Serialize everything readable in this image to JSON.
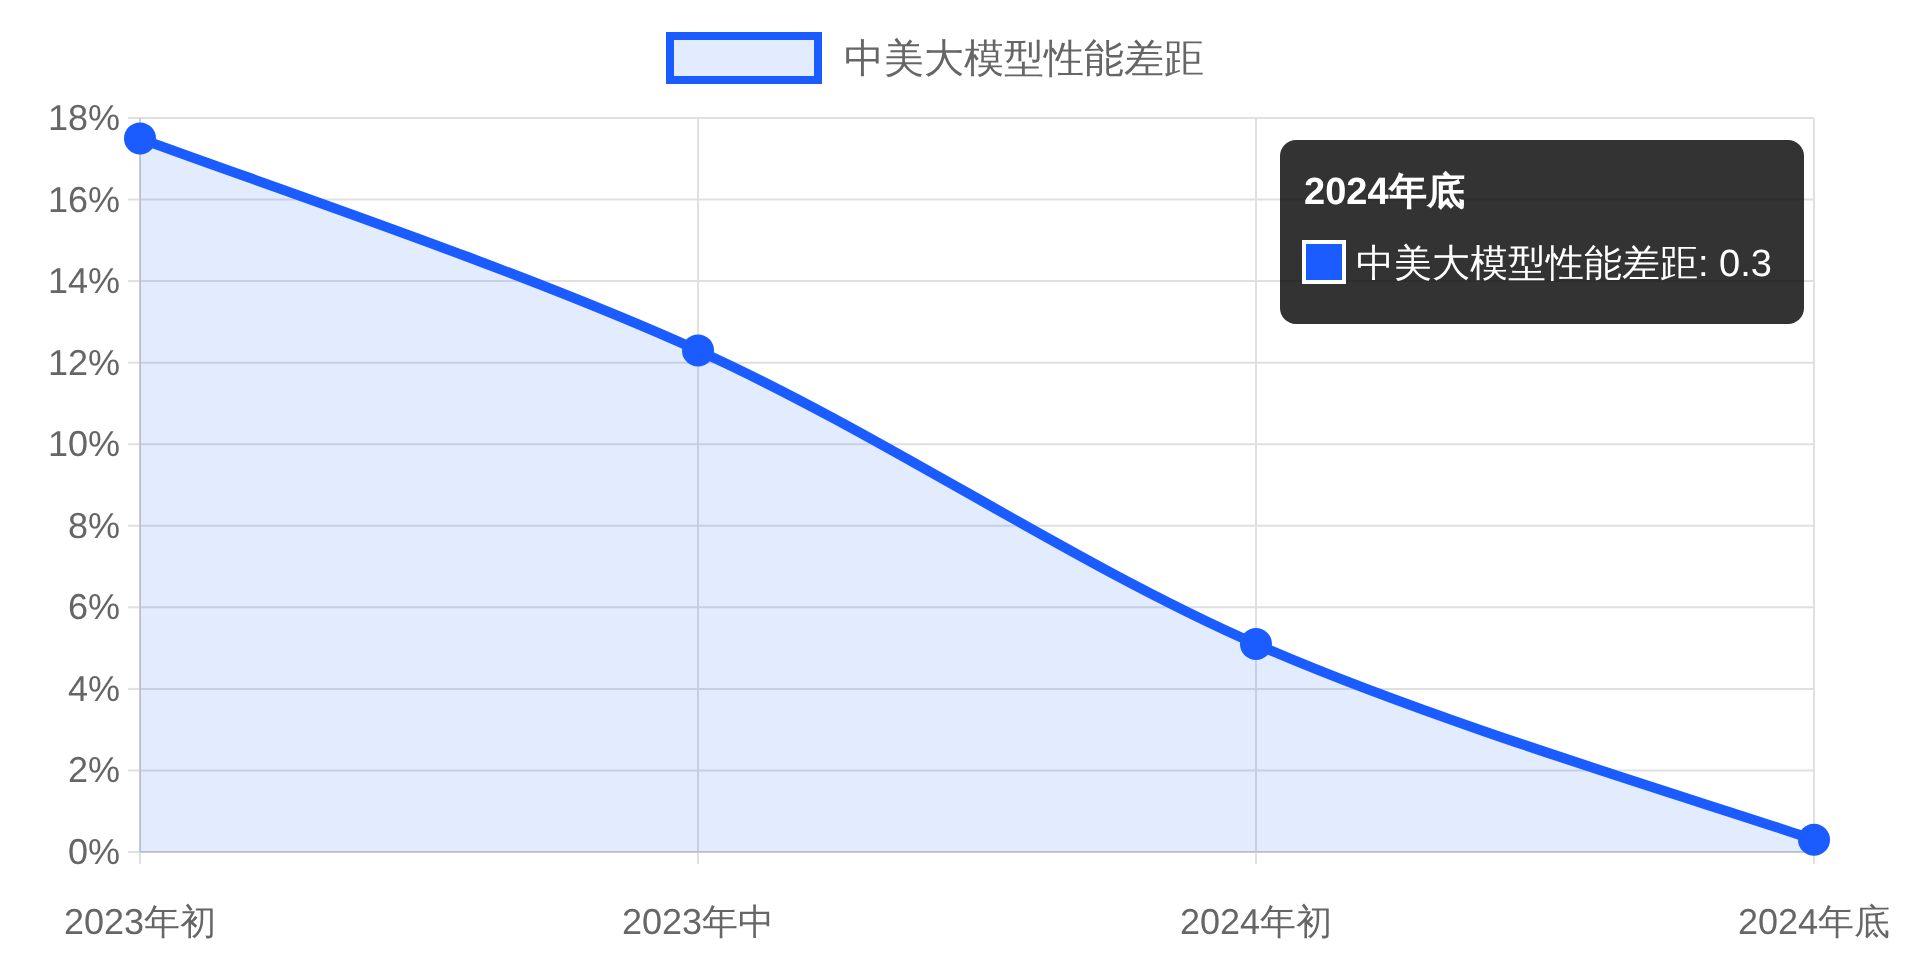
{
  "chart_data": {
    "type": "area",
    "categories": [
      "2023年初",
      "2023年中",
      "2024年初",
      "2024年底"
    ],
    "series": [
      {
        "name": "中美大模型性能差距",
        "color": "#1a5cff",
        "values": [
          17.5,
          12.3,
          5.1,
          0.3
        ]
      }
    ],
    "ylim": [
      0,
      18
    ],
    "yticks": [
      {
        "value": 0,
        "label": "0%"
      },
      {
        "value": 2,
        "label": "2%"
      },
      {
        "value": 4,
        "label": "4%"
      },
      {
        "value": 6,
        "label": "6%"
      },
      {
        "value": 8,
        "label": "8%"
      },
      {
        "value": 10,
        "label": "10%"
      },
      {
        "value": 12,
        "label": "12%"
      },
      {
        "value": 14,
        "label": "14%"
      },
      {
        "value": 16,
        "label": "16%"
      },
      {
        "value": 18,
        "label": "18%"
      }
    ],
    "grid": true,
    "legend": "top",
    "marker": "circle",
    "line_style": "solid",
    "annotations": [
      "2024年底",
      "中美大模型性能差距: 0.3"
    ]
  }
}
